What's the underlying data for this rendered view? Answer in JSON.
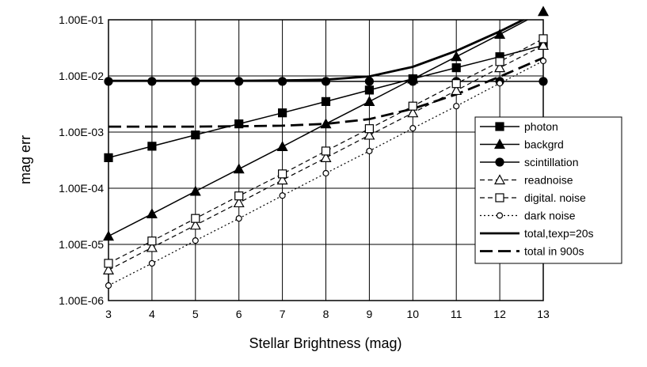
{
  "chart_data": {
    "type": "line",
    "xlabel": "Stellar Brightness (mag)",
    "ylabel": "mag err",
    "x": [
      3,
      4,
      5,
      6,
      7,
      8,
      9,
      10,
      11,
      12,
      13
    ],
    "xlim": [
      3,
      13
    ],
    "ylim": [
      1e-06,
      0.1
    ],
    "y_scale": "log",
    "y_ticks": [
      "1.00E-06",
      "1.00E-05",
      "1.00E-04",
      "1.00E-03",
      "1.00E-02",
      "1.00E-01"
    ],
    "grid": true,
    "legend_position": "right",
    "series": [
      {
        "name": "photon",
        "style": "solid-square-filled",
        "color": "#000000",
        "values": [
          0.00035,
          0.00056,
          0.00089,
          0.0014,
          0.0022,
          0.0035,
          0.0056,
          0.0089,
          0.014,
          0.022,
          0.035
        ]
      },
      {
        "name": "backgrd",
        "style": "solid-triangle-filled",
        "color": "#000000",
        "values": [
          1.4e-05,
          3.5e-05,
          8.8e-05,
          0.00022,
          0.00055,
          0.0014,
          0.0035,
          0.0088,
          0.022,
          0.055,
          0.14
        ]
      },
      {
        "name": "scintillation",
        "style": "solid-circle-filled",
        "color": "#000000",
        "values": [
          0.008,
          0.008,
          0.008,
          0.008,
          0.008,
          0.008,
          0.008,
          0.008,
          0.008,
          0.008,
          0.008
        ]
      },
      {
        "name": "readnoise",
        "style": "dashed-triangle-open",
        "color": "#000000",
        "values": [
          3.5e-06,
          8.8e-06,
          2.2e-05,
          5.5e-05,
          0.00014,
          0.00035,
          0.00088,
          0.0022,
          0.0055,
          0.014,
          0.035
        ]
      },
      {
        "name": "digital. noise",
        "style": "dashed-square-open",
        "color": "#000000",
        "values": [
          4.6e-06,
          1.15e-05,
          2.9e-05,
          7.3e-05,
          0.00018,
          0.00046,
          0.00115,
          0.0029,
          0.0073,
          0.018,
          0.046
        ]
      },
      {
        "name": "dark noise",
        "style": "dotted-circle-open",
        "color": "#000000",
        "values": [
          1.85e-06,
          4.6e-06,
          1.17e-05,
          2.9e-05,
          7.4e-05,
          0.000185,
          0.00046,
          0.00117,
          0.0029,
          0.0074,
          0.0185
        ]
      },
      {
        "name": "total,texp=20s",
        "style": "thick-solid",
        "color": "#000000",
        "values": [
          0.0082,
          0.0082,
          0.0082,
          0.0082,
          0.0083,
          0.0086,
          0.0098,
          0.0145,
          0.028,
          0.062,
          0.15
        ]
      },
      {
        "name": "total in 900s",
        "style": "thick-dashed",
        "color": "#000000",
        "values": [
          0.00125,
          0.00125,
          0.00125,
          0.00127,
          0.0013,
          0.0014,
          0.0017,
          0.0026,
          0.0047,
          0.0097,
          0.021
        ]
      }
    ]
  }
}
